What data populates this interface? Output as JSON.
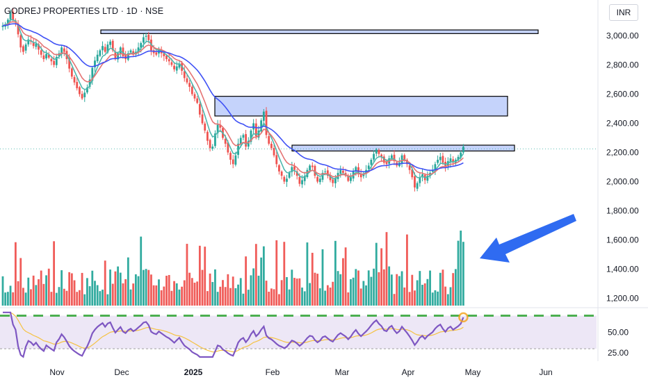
{
  "header": {
    "title": "GODREJ PROPERTIES LTD · 1D · NSE",
    "currency": "INR"
  },
  "colors": {
    "up": "#26a69a",
    "down": "#ef5350",
    "ema_fast": "#4db6ac",
    "ema_mid": "#e57373",
    "ema_slow": "#3f51f5",
    "zone_fill": "#c5d3fb",
    "zone_stroke": "#000000",
    "rsi_line": "#7e57c2",
    "rsi_ma": "#f5c242",
    "rsi_band": "#ede7f6",
    "rsi_dash": "#4caf50",
    "arrow": "#2f6bf1",
    "marker": "#f5a623"
  },
  "chart_data": [
    {
      "type": "candlestick",
      "series_note": "",
      "x_ticks": [
        "Nov",
        "Dec",
        "2025",
        "Feb",
        "Mar",
        "Apr",
        "May",
        "Jun"
      ],
      "y_ticks": [
        "3,000.00",
        "2,800.00",
        "2,600.00",
        "2,400.00",
        "2,200.00",
        "2,000.00",
        "1,800.00",
        "1,600.00",
        "1,400.00",
        "1,200.00"
      ],
      "ylim": [
        1150,
        3150
      ],
      "close_values": [
        3070,
        3080,
        3110,
        3160,
        3105,
        3090,
        3010,
        2920,
        2890,
        2940,
        2975,
        2960,
        2930,
        2945,
        2905,
        2870,
        2840,
        2875,
        2850,
        2825,
        2800,
        2855,
        2880,
        2920,
        2890,
        2840,
        2775,
        2720,
        2680,
        2640,
        2600,
        2570,
        2610,
        2645,
        2700,
        2780,
        2830,
        2870,
        2900,
        2930,
        2890,
        2940,
        2960,
        2900,
        2840,
        2880,
        2920,
        2860,
        2840,
        2880,
        2900,
        2870,
        2890,
        2920,
        2950,
        2990,
        3000,
        2970,
        2900,
        2880,
        2870,
        2900,
        2880,
        2860,
        2840,
        2825,
        2800,
        2770,
        2790,
        2810,
        2760,
        2710,
        2680,
        2650,
        2600,
        2570,
        2540,
        2460,
        2400,
        2350,
        2280,
        2230,
        2240,
        2330,
        2390,
        2370,
        2300,
        2260,
        2200,
        2150,
        2120,
        2180,
        2260,
        2300,
        2320,
        2240,
        2280,
        2350,
        2400,
        2310,
        2350,
        2420,
        2480,
        2320,
        2260,
        2230,
        2180,
        2120,
        2070,
        2040,
        2000,
        2020,
        2060,
        2100,
        2080,
        2040,
        1985,
        2010,
        2040,
        2080,
        2110,
        2100,
        2040,
        2000,
        2020,
        2060,
        2070,
        2040,
        2010,
        1990,
        2025,
        2060,
        2080,
        2060,
        2040,
        2005,
        2030,
        2070,
        2100,
        2060,
        2030,
        2055,
        2080,
        2110,
        2150,
        2190,
        2220,
        2190,
        2170,
        2130,
        2120,
        2160,
        2180,
        2140,
        2110,
        2130,
        2180,
        2150,
        2120,
        2080,
        2030,
        1960,
        1990,
        2030,
        2050,
        2010,
        2040,
        2060,
        2080,
        2120,
        2150,
        2170,
        2130,
        2100,
        2140,
        2160,
        2130,
        2150,
        2170,
        2200,
        2240
      ],
      "volume_ylim": [
        1150,
        1700
      ],
      "notes": "Volume histogram overlaid on lower part of price pane; latest volume bar ~1680."
    },
    {
      "type": "line",
      "name": "",
      "y_ticks": [
        "50.00",
        "25.00"
      ],
      "ylim": [
        15,
        78
      ],
      "latest_value": 68,
      "band": [
        30,
        70
      ]
    }
  ]
}
